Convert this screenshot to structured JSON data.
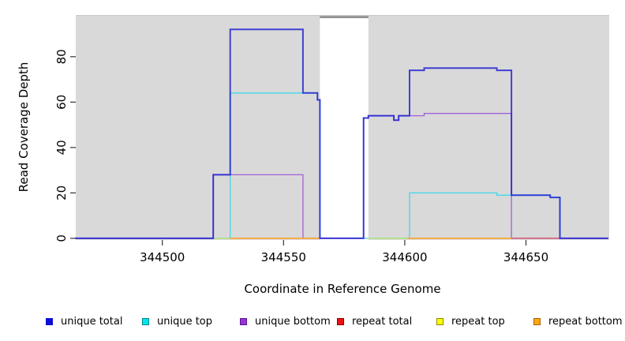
{
  "chart_data": {
    "type": "line",
    "subtype": "step-coverage",
    "title": "",
    "xlabel": "Coordinate in Reference Genome",
    "ylabel": "Read Coverage Depth",
    "x_ticks": [
      344500,
      344550,
      344600,
      344650
    ],
    "y_ticks": [
      0,
      20,
      40,
      60,
      80
    ],
    "xlim": [
      344464,
      344684
    ],
    "ylim": [
      0,
      97
    ],
    "grid": false,
    "panel_bg": "#d9d9d9",
    "panel_top_edge": "#c9c9c9",
    "gap_region": {
      "x_start": 344565,
      "x_end": 344585,
      "fill": "#ffffff",
      "top_bar_color": "#8f8f8f"
    },
    "series": [
      {
        "name": "unique top",
        "color": "#3fd9e8",
        "width": 1.3,
        "opacity": 1,
        "segments": [
          [
            [
              344464,
              0
            ],
            [
              344528,
              0
            ],
            [
              344528,
              64
            ],
            [
              344564,
              64
            ],
            [
              344564,
              61
            ],
            [
              344565,
              61
            ],
            [
              344565,
              0
            ],
            [
              344602,
              0
            ],
            [
              344602,
              20
            ],
            [
              344638,
              20
            ],
            [
              344638,
              19
            ],
            [
              344660,
              19
            ],
            [
              344660,
              18
            ],
            [
              344664,
              18
            ],
            [
              344664,
              0
            ],
            [
              344684,
              0
            ]
          ]
        ]
      },
      {
        "name": "repeat top",
        "color": "#e6e62e",
        "width": 1.4,
        "opacity": 0.65,
        "segments": [
          [
            [
              344521,
              0
            ],
            [
              344528,
              0
            ]
          ],
          [
            [
              344585,
              0
            ],
            [
              344601,
              0
            ]
          ]
        ]
      },
      {
        "name": "unique bottom",
        "color": "#a25fd6",
        "width": 1.3,
        "opacity": 1,
        "segments": [
          [
            [
              344464,
              0
            ],
            [
              344521,
              0
            ],
            [
              344521,
              28
            ],
            [
              344558,
              28
            ],
            [
              344558,
              0
            ],
            [
              344583,
              0
            ],
            [
              344583,
              53
            ],
            [
              344585,
              53
            ],
            [
              344585,
              54
            ],
            [
              344595.5,
              54
            ],
            [
              344595.5,
              52
            ],
            [
              344597.5,
              52
            ],
            [
              344597.5,
              54
            ],
            [
              344608,
              54
            ],
            [
              344608,
              55
            ],
            [
              344644,
              55
            ],
            [
              344644,
              0
            ],
            [
              344684,
              0
            ]
          ]
        ]
      },
      {
        "name": "repeat bottom",
        "color": "#ff9e1a",
        "width": 1.5,
        "opacity": 1,
        "segments": [
          [
            [
              344528,
              0
            ],
            [
              344565,
              0
            ]
          ],
          [
            [
              344601,
              0
            ],
            [
              344644,
              0
            ]
          ]
        ]
      },
      {
        "name": "repeat total",
        "color": "#e03c50",
        "width": 1.3,
        "opacity": 0.85,
        "segments": [
          [
            [
              344644,
              0
            ],
            [
              344664,
              0
            ]
          ]
        ]
      },
      {
        "name": "unique total",
        "color": "#1e1ed2",
        "width": 2,
        "opacity": 0.82,
        "segments": [
          [
            [
              344464,
              0
            ],
            [
              344521,
              0
            ],
            [
              344521,
              28
            ],
            [
              344528,
              28
            ],
            [
              344528,
              92
            ],
            [
              344558,
              92
            ],
            [
              344558,
              64
            ],
            [
              344564,
              64
            ],
            [
              344564,
              61
            ],
            [
              344565,
              61
            ],
            [
              344565,
              0
            ],
            [
              344583,
              0
            ],
            [
              344583,
              53
            ],
            [
              344585,
              53
            ],
            [
              344585,
              54
            ],
            [
              344595.5,
              54
            ],
            [
              344595.5,
              52
            ],
            [
              344597.5,
              52
            ],
            [
              344597.5,
              54
            ],
            [
              344602,
              54
            ],
            [
              344602,
              74
            ],
            [
              344608,
              74
            ],
            [
              344608,
              75
            ],
            [
              344638,
              75
            ],
            [
              344638,
              74
            ],
            [
              344644,
              74
            ],
            [
              344644,
              19
            ],
            [
              344660,
              19
            ],
            [
              344660,
              18
            ],
            [
              344664,
              18
            ],
            [
              344664,
              0
            ],
            [
              344684,
              0
            ]
          ]
        ]
      }
    ],
    "legend": {
      "position": "bottom",
      "items": [
        {
          "label": "unique total",
          "fill": "#0d0dd6",
          "border": "#0d0dd6"
        },
        {
          "label": "unique top",
          "fill": "#00e5ee",
          "border": "#00868b"
        },
        {
          "label": "unique bottom",
          "fill": "#9b30d9",
          "border": "#551a8b"
        },
        {
          "label": "repeat total",
          "fill": "#ee1111",
          "border": "#8b0000"
        },
        {
          "label": "repeat top",
          "fill": "#ffff00",
          "border": "#8b8b00"
        },
        {
          "label": "repeat bottom",
          "fill": "#ffa510",
          "border": "#a0690b"
        }
      ]
    }
  }
}
